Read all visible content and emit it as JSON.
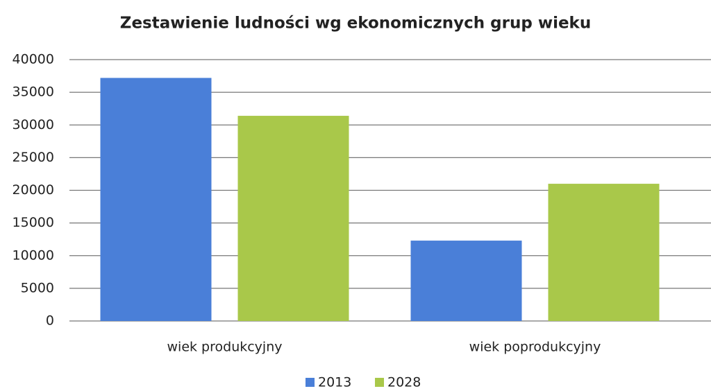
{
  "chart_data": {
    "type": "bar",
    "title": "Zestawienie ludności wg ekonomicznych grup wieku",
    "categories": [
      "wiek produkcyjny",
      "wiek poprodukcyjny"
    ],
    "series": [
      {
        "name": "2013",
        "color": "#4a7fd8",
        "values": [
          37200,
          12300
        ]
      },
      {
        "name": "2028",
        "color": "#a9c84a",
        "values": [
          31400,
          21000
        ]
      }
    ],
    "ylim": [
      0,
      40000
    ],
    "yticks": [
      0,
      5000,
      10000,
      15000,
      20000,
      25000,
      30000,
      35000,
      40000
    ],
    "grid": true,
    "legend": "bottom"
  }
}
